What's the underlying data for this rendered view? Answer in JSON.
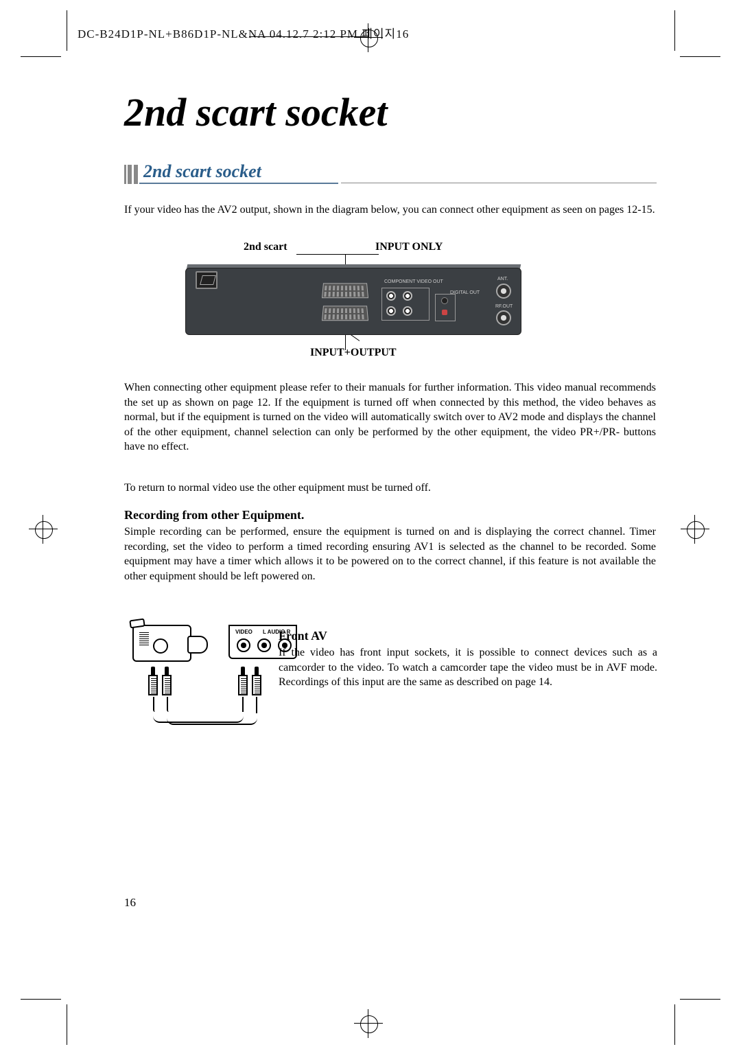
{
  "header": {
    "text": "DC-B24D1P-NL+B86D1P-NL&NA  04.12.7  2:12 PM  페이지16"
  },
  "titles": {
    "main": "2nd scart socket",
    "sub": "2nd scart socket"
  },
  "intro": "If your video has the AV2 output, shown in the diagram below, you can connect other equipment as seen on pages 12-15.",
  "diagram": {
    "label_left": "2nd scart",
    "label_right": "INPUT ONLY",
    "label_bottom": "INPUT+OUTPUT",
    "tiny1": "COMPONENT VIDEO OUT",
    "tiny2": "DIGITAL OUT",
    "rf1": "ANT.",
    "rf2": "RF.OUT"
  },
  "paragraphs": {
    "p1": "When connecting other equipment please refer to their manuals for further information. This video manual recommends the set up as shown on page 12. If the equipment is turned off when connected by this method, the video behaves as normal, but if the equipment is turned on the video will automatically switch over to AV2 mode and displays the channel of the other equipment, channel selection can only be performed by the other equipment, the video PR+/PR- buttons have no effect.",
    "p2": "To return to normal video use the other equipment must be turned off.",
    "h_rec": "Recording from other Equipment.",
    "p3": "Simple recording can be performed, ensure the equipment is turned on and is displaying the correct channel. Timer recording, set the video to perform a timed recording ensuring AV1 is selected as the channel to be recorded. Some equipment may have a timer which allows it to be powered on to the correct channel, if this feature is not available the other equipment should be left powered on.",
    "h_front": "Front AV",
    "p4": "If the video has front input sockets, it is possible to connect devices such as a camcorder to the video. To watch a camcorder tape the video must be in AVF mode. Recordings of this input are the same as described on page 14."
  },
  "av_panel": {
    "lbl_video": "VIDEO",
    "lbl_audio": "L AUDIO R"
  },
  "page_number": "16",
  "colors": {
    "accent": "#2a5d8a",
    "band_line": "#5a7a99",
    "vcr_body": "#3b3f43"
  },
  "fonts": {
    "title_size_pt": 44,
    "subtitle_size_pt": 20,
    "body_size_pt": 12
  }
}
